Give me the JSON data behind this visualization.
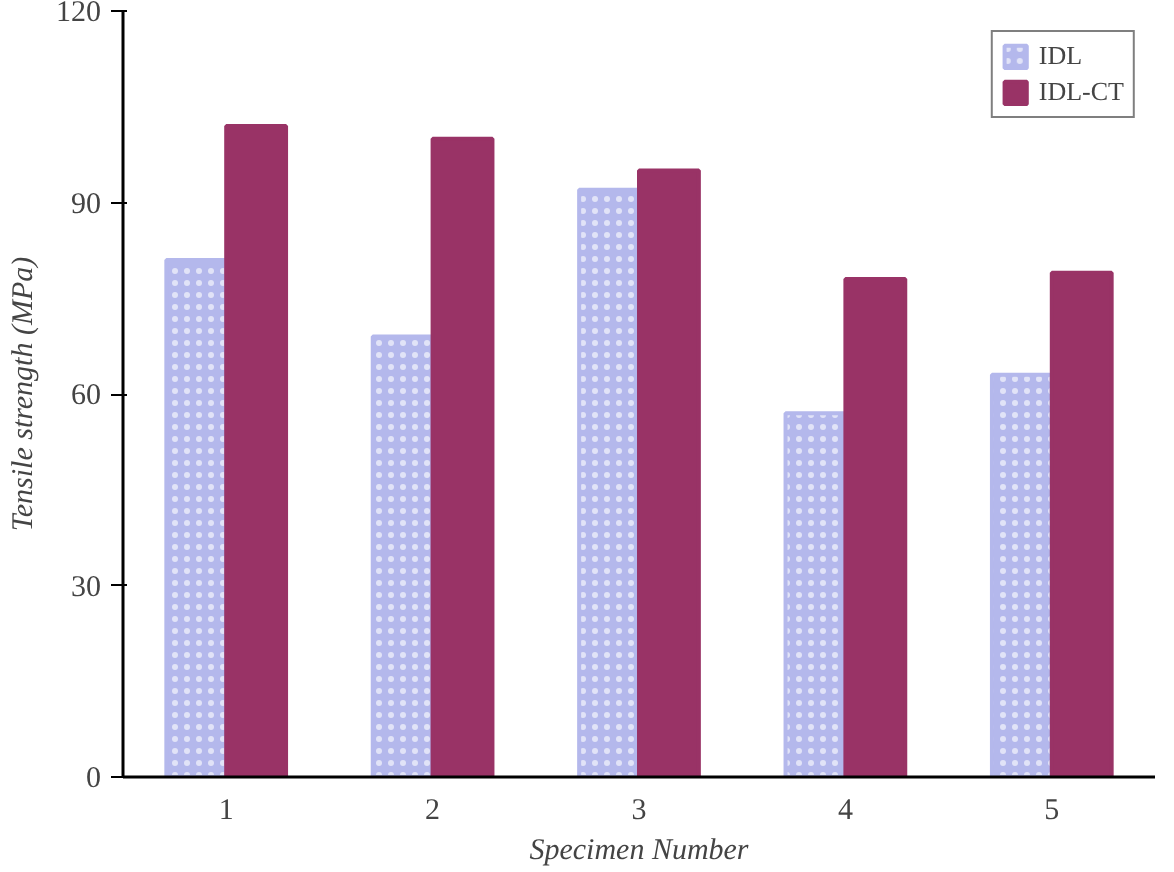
{
  "chart_data": {
    "type": "bar",
    "xlabel": "Specimen Number",
    "ylabel": "Tensile strength (MPa)",
    "categories": [
      "1",
      "2",
      "3",
      "4",
      "5"
    ],
    "series": [
      {
        "name": "IDL",
        "color": "#b4b8ec",
        "values": [
          81,
          69,
          92,
          57,
          63
        ]
      },
      {
        "name": "IDL-CT",
        "color": "#993366",
        "values": [
          102,
          100,
          95,
          78,
          79
        ]
      }
    ],
    "ylim": [
      0,
      120
    ],
    "yticks": [
      0,
      30,
      60,
      90,
      120
    ],
    "grid": false,
    "legend": "top right"
  }
}
